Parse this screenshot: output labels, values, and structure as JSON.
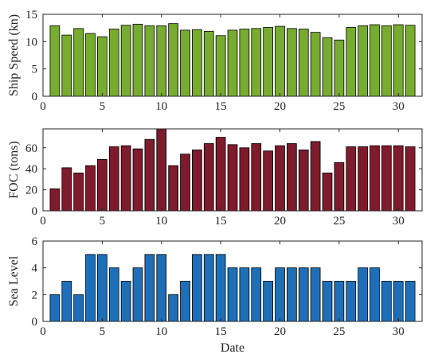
{
  "chart_data": [
    {
      "type": "bar",
      "xlabel": "",
      "ylabel": "Ship Speed (kn)",
      "xlim": [
        0,
        32
      ],
      "ylim": [
        0,
        15
      ],
      "xticks": [
        0,
        5,
        10,
        15,
        20,
        25,
        30
      ],
      "yticks": [
        0,
        5,
        10,
        15
      ],
      "x": [
        1,
        2,
        3,
        4,
        5,
        6,
        7,
        8,
        9,
        10,
        11,
        12,
        13,
        14,
        15,
        16,
        17,
        18,
        19,
        20,
        21,
        22,
        23,
        24,
        25,
        26,
        27,
        28,
        29,
        30,
        31
      ],
      "values": [
        12.9,
        11.2,
        12.4,
        11.5,
        10.9,
        12.3,
        13.0,
        13.2,
        12.9,
        12.9,
        13.3,
        12.1,
        12.2,
        11.9,
        11.1,
        12.1,
        12.3,
        12.4,
        12.6,
        12.8,
        12.4,
        12.3,
        11.7,
        10.7,
        10.3,
        12.6,
        12.9,
        13.1,
        12.9,
        13.1,
        13.0
      ],
      "color": "#77ac30",
      "grid": false
    },
    {
      "type": "bar",
      "xlabel": "",
      "ylabel": "FOC (tons)",
      "xlim": [
        0,
        32
      ],
      "ylim": [
        0,
        78
      ],
      "xticks": [
        0,
        5,
        10,
        15,
        20,
        25,
        30
      ],
      "yticks": [
        0,
        20,
        40,
        60
      ],
      "x": [
        1,
        2,
        3,
        4,
        5,
        6,
        7,
        8,
        9,
        10,
        11,
        12,
        13,
        14,
        15,
        16,
        17,
        18,
        19,
        20,
        21,
        22,
        23,
        24,
        25,
        26,
        27,
        28,
        29,
        30,
        31
      ],
      "values": [
        21,
        41,
        36,
        43,
        49,
        61,
        62,
        59,
        68,
        78,
        43,
        54,
        58,
        64,
        70,
        63,
        60,
        64,
        57,
        62,
        64,
        58,
        66,
        36,
        46,
        61,
        61,
        62,
        62,
        62,
        61
      ],
      "color": "#7e1b2c",
      "grid": false
    },
    {
      "type": "bar",
      "xlabel": "Date",
      "ylabel": "Sea Level",
      "xlim": [
        0,
        32
      ],
      "ylim": [
        0,
        6
      ],
      "xticks": [
        0,
        5,
        10,
        15,
        20,
        25,
        30
      ],
      "yticks": [
        0,
        2,
        4,
        6
      ],
      "x": [
        1,
        2,
        3,
        4,
        5,
        6,
        7,
        8,
        9,
        10,
        11,
        12,
        13,
        14,
        15,
        16,
        17,
        18,
        19,
        20,
        21,
        22,
        23,
        24,
        25,
        26,
        27,
        28,
        29,
        30,
        31
      ],
      "values": [
        2,
        3,
        2,
        5,
        5,
        4,
        3,
        4,
        5,
        5,
        2,
        3,
        5,
        5,
        5,
        4,
        4,
        4,
        3,
        4,
        4,
        4,
        4,
        3,
        3,
        3,
        4,
        4,
        3,
        3,
        3
      ],
      "color": "#1f6fb8",
      "grid": false
    }
  ]
}
